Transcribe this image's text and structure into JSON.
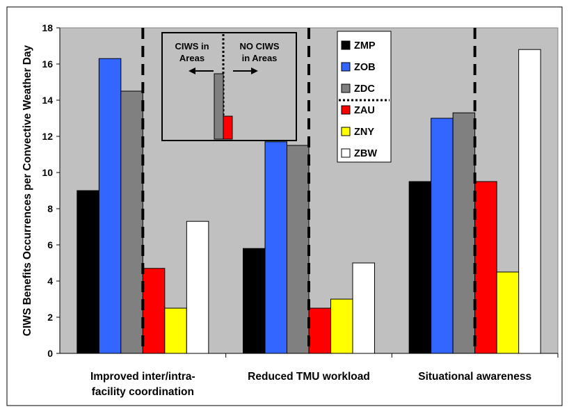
{
  "chart_data": {
    "type": "bar",
    "title": "",
    "ylabel": "CIWS Benefits Occurrences per Convective Weather Day",
    "xlabel": "",
    "categories": [
      [
        "Improved inter/intra-",
        "facility coordination"
      ],
      [
        "Reduced TMU workload"
      ],
      [
        "Situational awareness"
      ]
    ],
    "ylim": [
      0,
      18
    ],
    "yticks": [
      0,
      2,
      4,
      6,
      8,
      10,
      12,
      14,
      16,
      18
    ],
    "grid": false,
    "legend_position": "top-right, inside plot",
    "series": [
      {
        "name": "ZMP",
        "color": "#000000",
        "values": [
          9.0,
          5.8,
          9.5
        ]
      },
      {
        "name": "ZOB",
        "color": "#3366FF",
        "values": [
          16.3,
          11.7,
          13.0
        ]
      },
      {
        "name": "ZDC",
        "color": "#808080",
        "values": [
          14.5,
          11.5,
          13.3
        ]
      },
      {
        "name": "ZAU",
        "color": "#FF0000",
        "values": [
          4.7,
          2.5,
          9.5
        ]
      },
      {
        "name": "ZNY",
        "color": "#FFFF00",
        "values": [
          2.5,
          3.0,
          4.5
        ]
      },
      {
        "name": "ZBW",
        "color": "#FFFFFF",
        "values": [
          7.3,
          5.0,
          16.8
        ]
      }
    ],
    "inset": {
      "left_label": [
        "CIWS in",
        "Areas"
      ],
      "right_label": [
        "NO CIWS",
        "in Areas"
      ]
    },
    "plot_background": "#C0C0C0"
  }
}
